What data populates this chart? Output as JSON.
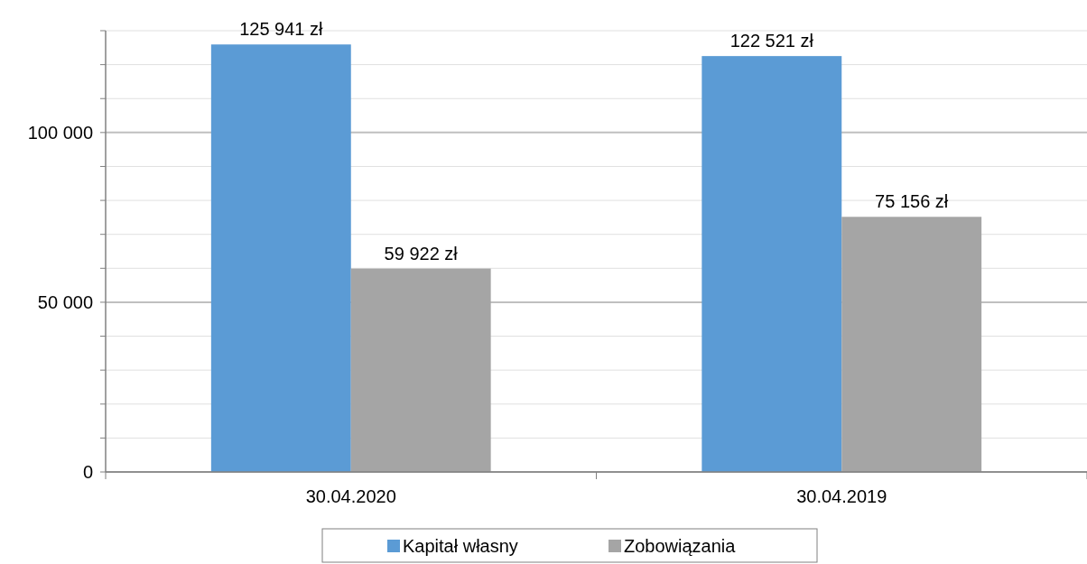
{
  "chart_data": {
    "type": "bar",
    "categories": [
      "30.04.2020",
      "30.04.2019"
    ],
    "series": [
      {
        "name": "Kapitał własny",
        "color": "#5b9bd5",
        "values": [
          125941,
          122521
        ],
        "value_labels": [
          "125 941 zł",
          "122 521 zł"
        ]
      },
      {
        "name": "Zobowiązania",
        "color": "#a5a5a5",
        "values": [
          59922,
          75156
        ],
        "value_labels": [
          "59 922 zł",
          "75 156 zł"
        ]
      }
    ],
    "ylim": [
      0,
      130000
    ],
    "yticks": [
      {
        "value": 0,
        "label": "0"
      },
      {
        "value": 10000,
        "label": null
      },
      {
        "value": 20000,
        "label": null
      },
      {
        "value": 30000,
        "label": null
      },
      {
        "value": 40000,
        "label": null
      },
      {
        "value": 50000,
        "label": "50 000"
      },
      {
        "value": 60000,
        "label": null
      },
      {
        "value": 70000,
        "label": null
      },
      {
        "value": 80000,
        "label": null
      },
      {
        "value": 90000,
        "label": null
      },
      {
        "value": 100000,
        "label": "100 000"
      },
      {
        "value": 110000,
        "label": null
      },
      {
        "value": 120000,
        "label": null
      },
      {
        "value": 130000,
        "label": null
      }
    ],
    "grid": true,
    "legend": "bottom"
  }
}
